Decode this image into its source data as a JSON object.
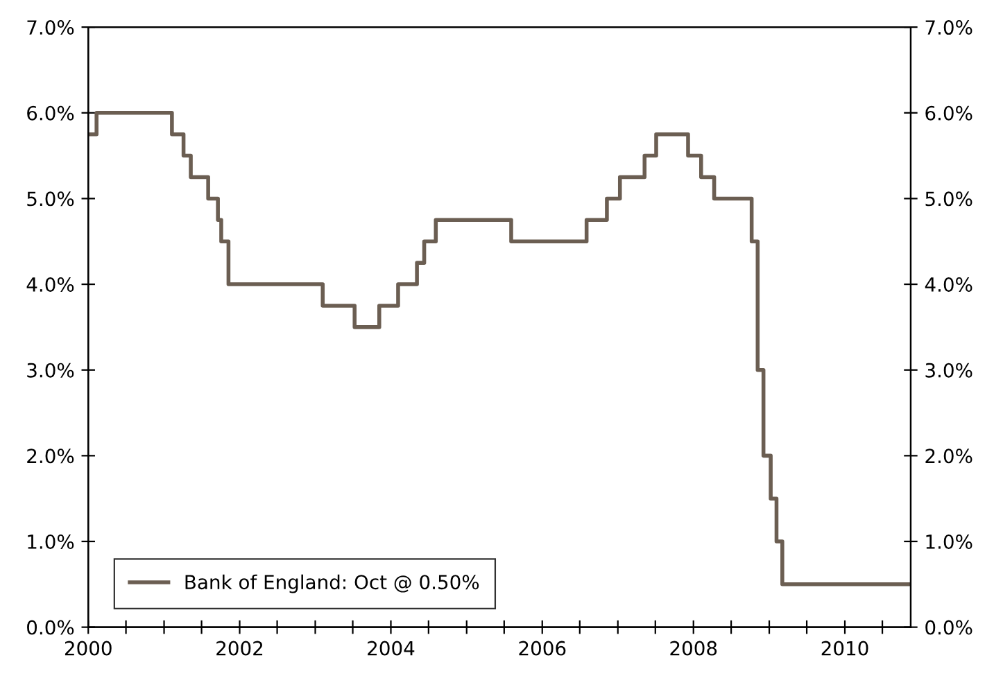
{
  "chart_data": {
    "type": "step",
    "legend": "bottom left",
    "grid": false,
    "x": [
      "2000-01-01",
      "2000-02-10",
      "2001-02-08",
      "2001-04-05",
      "2001-05-10",
      "2001-08-02",
      "2001-09-18",
      "2001-10-04",
      "2001-11-08",
      "2003-02-06",
      "2003-07-10",
      "2003-11-06",
      "2004-02-05",
      "2004-05-06",
      "2004-06-10",
      "2004-08-05",
      "2005-08-04",
      "2006-08-03",
      "2006-11-09",
      "2007-01-11",
      "2007-05-10",
      "2007-07-05",
      "2007-12-06",
      "2008-02-07",
      "2008-04-10",
      "2008-10-08",
      "2008-11-06",
      "2008-12-04",
      "2009-01-08",
      "2009-02-05",
      "2009-03-05",
      "2010-11-15"
    ],
    "series": [
      {
        "name": "Bank of England: Oct @ 0.50%",
        "color": "#6b5e52",
        "values": [
          5.75,
          6.0,
          5.75,
          5.5,
          5.25,
          5.0,
          4.75,
          4.5,
          4.0,
          3.75,
          3.5,
          3.75,
          4.0,
          4.25,
          4.5,
          4.75,
          4.5,
          4.75,
          5.0,
          5.25,
          5.5,
          5.75,
          5.5,
          5.25,
          5.0,
          4.5,
          3.0,
          2.0,
          1.5,
          1.0,
          0.5,
          0.5
        ]
      }
    ],
    "xlim": [
      "2000-01-01",
      "2010-11-15"
    ],
    "xticks": [
      {
        "value": "2000-01-01",
        "label": "2000"
      },
      {
        "value": "2000-07-01",
        "label": null
      },
      {
        "value": "2001-01-01",
        "label": null
      },
      {
        "value": "2001-07-01",
        "label": null
      },
      {
        "value": "2002-01-01",
        "label": "2002"
      },
      {
        "value": "2002-07-01",
        "label": null
      },
      {
        "value": "2003-01-01",
        "label": null
      },
      {
        "value": "2003-07-01",
        "label": null
      },
      {
        "value": "2004-01-01",
        "label": "2004"
      },
      {
        "value": "2004-07-01",
        "label": null
      },
      {
        "value": "2005-01-01",
        "label": null
      },
      {
        "value": "2005-07-01",
        "label": null
      },
      {
        "value": "2006-01-01",
        "label": "2006"
      },
      {
        "value": "2006-07-01",
        "label": null
      },
      {
        "value": "2007-01-01",
        "label": null
      },
      {
        "value": "2007-07-01",
        "label": null
      },
      {
        "value": "2008-01-01",
        "label": "2008"
      },
      {
        "value": "2008-07-01",
        "label": null
      },
      {
        "value": "2009-01-01",
        "label": null
      },
      {
        "value": "2009-07-01",
        "label": null
      },
      {
        "value": "2010-01-01",
        "label": "2010"
      },
      {
        "value": "2010-07-01",
        "label": null
      }
    ],
    "ylim": [
      0,
      7
    ],
    "yticks": [
      {
        "value": 0,
        "label": "0.0%"
      },
      {
        "value": 1,
        "label": "1.0%"
      },
      {
        "value": 2,
        "label": "2.0%"
      },
      {
        "value": 3,
        "label": "3.0%"
      },
      {
        "value": 4,
        "label": "4.0%"
      },
      {
        "value": 5,
        "label": "5.0%"
      },
      {
        "value": 6,
        "label": "6.0%"
      },
      {
        "value": 7,
        "label": "7.0%"
      }
    ],
    "y2lim": [
      0,
      7
    ],
    "y2ticks": [
      {
        "value": 0,
        "label": "0.0%"
      },
      {
        "value": 1,
        "label": "1.0%"
      },
      {
        "value": 2,
        "label": "2.0%"
      },
      {
        "value": 3,
        "label": "3.0%"
      },
      {
        "value": 4,
        "label": "4.0%"
      },
      {
        "value": 5,
        "label": "5.0%"
      },
      {
        "value": 6,
        "label": "6.0%"
      },
      {
        "value": 7,
        "label": "7.0%"
      }
    ]
  }
}
